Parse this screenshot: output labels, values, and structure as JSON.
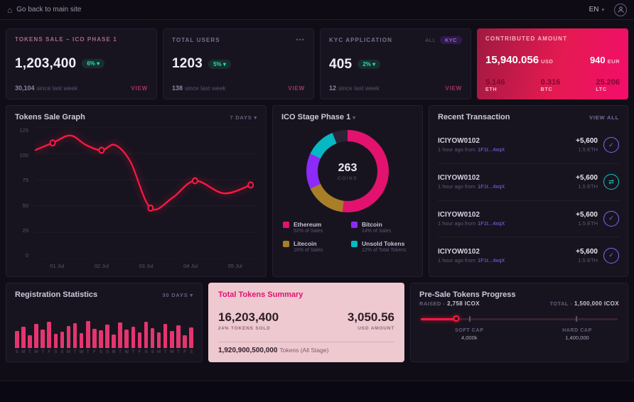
{
  "topbar": {
    "back_label": "Go back to main site",
    "lang": "EN",
    "caret": "▾"
  },
  "stats": {
    "cards": [
      {
        "title": "TOKENS SALE – ICO PHASE 1",
        "value": "1,203,400",
        "badge": "6% ▾",
        "sub_value": "30,104",
        "sub_label": "since last week",
        "action": "VIEW"
      },
      {
        "title": "TOTAL USERS",
        "menu": "•••",
        "value": "1203",
        "badge": "5% ▾",
        "sub_value": "138",
        "sub_label": "since last week",
        "action": "VIEW"
      },
      {
        "title": "KYC APPLICATION",
        "filter_all": "ALL",
        "filter_kyc": "KYC",
        "value": "405",
        "badge": "2% ▾",
        "sub_value": "12",
        "sub_label": "since last week",
        "action": "VIEW"
      }
    ],
    "contributed": {
      "title": "CONTRIBUTED AMOUNT",
      "usd_value": "15,940.056",
      "usd_unit": "USD",
      "eur_value": "940",
      "eur_unit": "EUR",
      "coins": [
        {
          "value": "5.146",
          "unit": "ETH"
        },
        {
          "value": "0.316",
          "unit": "BTC"
        },
        {
          "value": "25.206",
          "unit": "LTC"
        }
      ]
    }
  },
  "tokens_graph": {
    "title": "Tokens Sale Graph",
    "range": "7 DAYS ▾"
  },
  "ico_stage_card": {
    "title": "ICO Stage Phase 1",
    "caret": "▾"
  },
  "transactions": {
    "title": "Recent Transaction",
    "action": "VIEW ALL",
    "items": [
      {
        "id": "ICIYOW0102",
        "meta": "1 hour ago from",
        "hash": "1F1t...4xqX",
        "amount": "+5,600",
        "amount_sub": "1.5 ETH",
        "icon_glyph": "✓",
        "icon_color": "#8b63f8"
      },
      {
        "id": "ICIYOW0102",
        "meta": "1 hour ago from",
        "hash": "1F1t...4xqX",
        "amount": "+5,600",
        "amount_sub": "1.5 ETH",
        "icon_glyph": "⇄",
        "icon_color": "#17c7ba"
      },
      {
        "id": "ICIYOW0102",
        "meta": "1 hour ago from",
        "hash": "1F1t...4xqX",
        "amount": "+5,600",
        "amount_sub": "1.5 ETH",
        "icon_glyph": "✓",
        "icon_color": "#8b63f8"
      },
      {
        "id": "ICIYOW0102",
        "meta": "1 hour ago from",
        "hash": "1F1t...4xqX",
        "amount": "+5,600",
        "amount_sub": "1.5 ETH",
        "icon_glyph": "✓",
        "icon_color": "#8b63f8"
      }
    ]
  },
  "registration_card": {
    "title": "Registration Statistics",
    "range": "30 DAYS ▾"
  },
  "summary": {
    "title": "Total Tokens Summary",
    "tokens_value": "16,203,400",
    "tokens_label": "24% TOKENS SOLD",
    "usd_value": "3,050.56",
    "usd_label": "USD AMOUNT",
    "total_value": "1,920,900,500,000",
    "total_label": "Tokens (All Stage)"
  },
  "presale": {
    "title": "Pre-Sale Tokens Progress",
    "raised_label": "RAISED -",
    "raised_value": "2,758 ICOX",
    "total_label": "TOTAL -",
    "total_value": "1,500,000 ICOX",
    "progress_pct": 18,
    "soft_cap_label": "SOFT CAP",
    "soft_cap_value": "4,000k",
    "soft_pos_pct": 25,
    "hard_cap_label": "HARD CAP",
    "hard_cap_value": "1,400,000",
    "hard_pos_pct": 79
  },
  "chart_data": {
    "tokens_sale": {
      "type": "line",
      "title": "Tokens Sale Graph",
      "x_ticks": [
        "01 Jul",
        "02 Jul",
        "03 Jul",
        "04 Jul",
        "05 Jul"
      ],
      "y_ticks": [
        "125",
        "100",
        "75",
        "50",
        "25",
        "0"
      ],
      "ylim": [
        0,
        125
      ],
      "color": "#ff1843",
      "points": [
        {
          "x": 0.0,
          "v": 103
        },
        {
          "x": 0.08,
          "v": 110,
          "m": true
        },
        {
          "x": 0.16,
          "v": 117
        },
        {
          "x": 0.23,
          "v": 108
        },
        {
          "x": 0.3,
          "v": 103,
          "m": true
        },
        {
          "x": 0.36,
          "v": 108
        },
        {
          "x": 0.43,
          "v": 92
        },
        {
          "x": 0.52,
          "v": 48,
          "m": true
        },
        {
          "x": 0.62,
          "v": 58
        },
        {
          "x": 0.72,
          "v": 74,
          "m": true
        },
        {
          "x": 0.85,
          "v": 62
        },
        {
          "x": 0.97,
          "v": 70,
          "m": true
        }
      ]
    },
    "ico_stage": {
      "type": "pie",
      "center_value": "263",
      "center_label": "COINS",
      "segments": [
        {
          "name": "Ethereum",
          "sub": "52% of Sales",
          "pct": 52,
          "color": "#e2126e"
        },
        {
          "name": "Bitcoin",
          "sub": "14% of Sales",
          "pct": 14,
          "color": "#8c2af8"
        },
        {
          "name": "Litecoin",
          "sub": "16% of Sales",
          "pct": 16,
          "color": "#a87e27"
        },
        {
          "name": "Unsold Tokens",
          "sub": "12% of Total Tokens",
          "pct": 12,
          "color": "#06b8c4"
        }
      ],
      "draw_order": [
        0,
        2,
        1,
        3
      ],
      "filler_color": "#2b2335"
    },
    "registration": {
      "type": "bar",
      "title": "Registration Statistics",
      "color": "#e4356f",
      "values": [
        60,
        75,
        45,
        85,
        65,
        92,
        50,
        58,
        78,
        88,
        52,
        95,
        68,
        62,
        82,
        48,
        90,
        66,
        74,
        56,
        93,
        70,
        54,
        86,
        60,
        80,
        46,
        72
      ],
      "labels": [
        "S",
        "M",
        "T",
        "W",
        "T",
        "F",
        "S",
        "S",
        "M",
        "T",
        "W",
        "T",
        "F",
        "S",
        "S",
        "M",
        "T",
        "W",
        "T",
        "F",
        "S",
        "S",
        "M",
        "T",
        "W",
        "T",
        "F",
        "S"
      ]
    }
  }
}
